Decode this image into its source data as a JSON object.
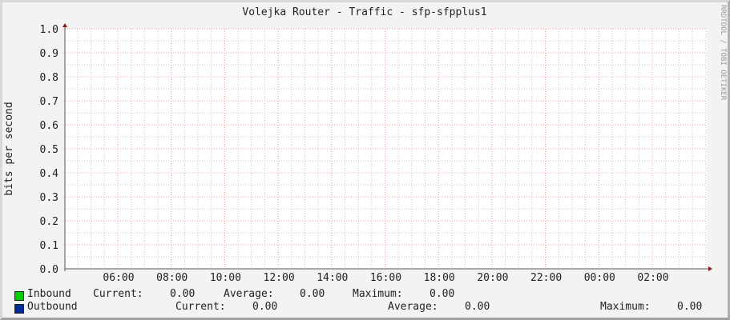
{
  "chart_data": {
    "type": "line",
    "title": "Volejka Router - Traffic - sfp-sfpplus1",
    "ylabel": "bits per second",
    "xlabel": "",
    "ylim": [
      0,
      1.0
    ],
    "yticks": [
      "0.0",
      "0.1",
      "0.2",
      "0.3",
      "0.4",
      "0.5",
      "0.6",
      "0.7",
      "0.8",
      "0.9",
      "1.0"
    ],
    "xticks": [
      "06:00",
      "08:00",
      "10:00",
      "12:00",
      "14:00",
      "16:00",
      "18:00",
      "20:00",
      "22:00",
      "00:00",
      "02:00"
    ],
    "grid": true,
    "watermark": "RRDTOOL / TOBI OETIKER",
    "series": [
      {
        "name": "Inbound",
        "color": "#00cc00",
        "values": [
          0
        ]
      },
      {
        "name": "Outbound",
        "color": "#002a97",
        "values": [
          0
        ]
      }
    ]
  },
  "legend": {
    "inbound": {
      "label": "Inbound",
      "current_label": "Current:",
      "current": "0.00",
      "average_label": "Average:",
      "average": "0.00",
      "maximum_label": "Maximum:",
      "maximum": "0.00"
    },
    "outbound": {
      "label": "Outbound",
      "current_label": "Current:",
      "current": "0.00",
      "average_label": "Average:",
      "average": "0.00",
      "maximum_label": "Maximum:",
      "maximum": "0.00"
    }
  }
}
